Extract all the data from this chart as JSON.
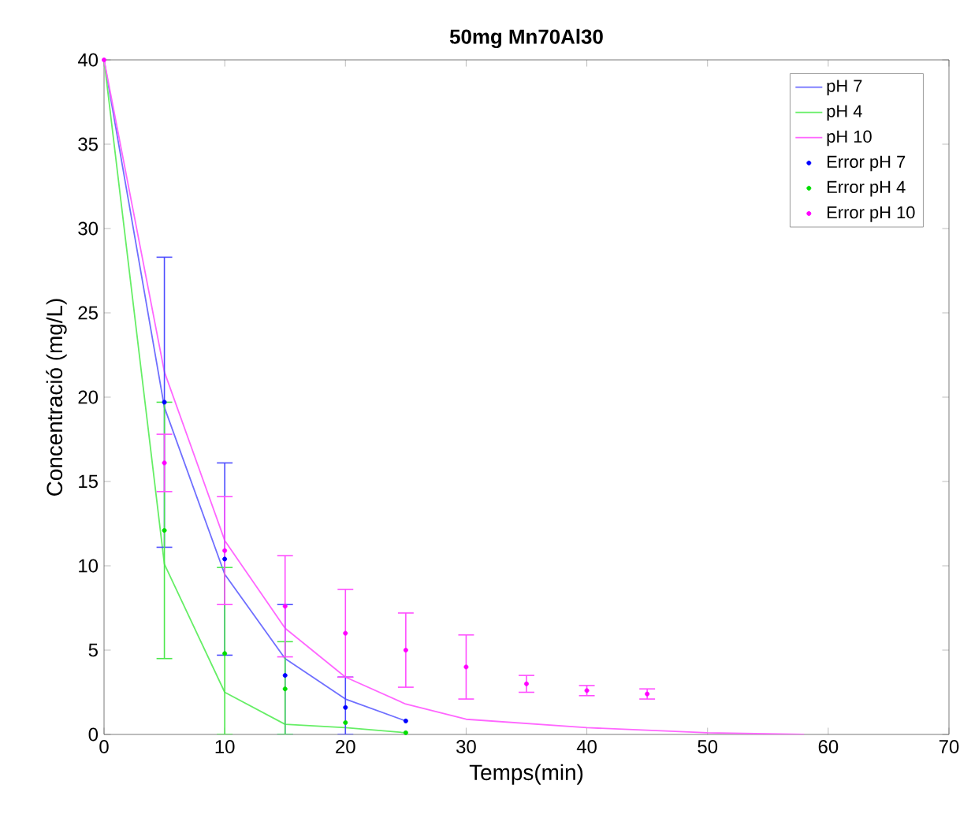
{
  "chart_data": {
    "type": "line",
    "title": "50mg Mn70Al30",
    "xlabel": "Temps(min)",
    "ylabel": "Concentració (mg/L)",
    "xlim": [
      0,
      70
    ],
    "xticks": [
      0,
      10,
      20,
      30,
      40,
      50,
      60,
      70
    ],
    "ylim": [
      0,
      40
    ],
    "yticks": [
      0,
      5,
      10,
      15,
      20,
      25,
      30,
      35,
      40
    ],
    "legend": "top right",
    "grid": false,
    "series": [
      {
        "name": "pH 7",
        "color": "#6f6fff",
        "marker": "none",
        "x": [
          0,
          5,
          10,
          15,
          20,
          25
        ],
        "values": [
          40,
          19.4,
          9.5,
          4.5,
          2.1,
          0.8
        ]
      },
      {
        "name": "pH 4",
        "color": "#66ee66",
        "marker": "none",
        "x": [
          0,
          5,
          10,
          15,
          20,
          25
        ],
        "values": [
          40,
          10.1,
          2.5,
          0.6,
          0.4,
          0.1
        ]
      },
      {
        "name": "pH 10",
        "color": "#ff66ff",
        "marker": "none",
        "x": [
          0,
          5,
          10,
          15,
          20,
          25,
          30,
          40,
          50,
          58
        ],
        "values": [
          40,
          21.5,
          11.5,
          6.3,
          3.4,
          1.8,
          0.9,
          0.4,
          0.1,
          0
        ]
      },
      {
        "name": "Error pH 7",
        "type": "scatter",
        "color": "#0000ff",
        "marker": "circle",
        "x": [
          5,
          10,
          15,
          20,
          25
        ],
        "values": [
          19.7,
          10.4,
          3.5,
          1.6,
          0.8
        ],
        "errors": [
          8.6,
          5.7,
          [
            0,
            7.7
          ],
          [
            0,
            3.4
          ],
          null
        ]
      },
      {
        "name": "Error pH 4",
        "type": "scatter",
        "color": "#00dd00",
        "marker": "circle",
        "x": [
          5,
          10,
          15,
          20,
          25
        ],
        "values": [
          12.1,
          4.8,
          2.7,
          0.7,
          0.1
        ],
        "errors": [
          7.6,
          [
            0,
            9.9
          ],
          [
            0,
            5.5
          ],
          null,
          null
        ]
      },
      {
        "name": "Error pH 10",
        "type": "scatter",
        "color": "#ff00ff",
        "marker": "circle",
        "x": [
          0,
          5,
          10,
          15,
          20,
          25,
          30,
          35,
          40,
          45
        ],
        "values": [
          40,
          16.1,
          10.9,
          7.6,
          6.0,
          5.0,
          4.0,
          3.0,
          2.6,
          2.4
        ],
        "errors": [
          null,
          1.7,
          3.2,
          3.0,
          2.6,
          2.2,
          1.9,
          0.5,
          0.3,
          0.3
        ]
      }
    ]
  }
}
